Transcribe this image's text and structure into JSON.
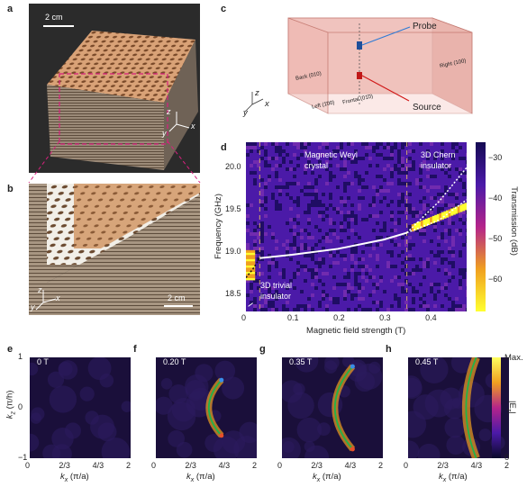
{
  "panels": {
    "a": {
      "label": "a",
      "scale": "2 cm",
      "axes": {
        "x": "x",
        "y": "y",
        "z": "z"
      }
    },
    "b": {
      "label": "b",
      "scale": "2 cm",
      "axes": {
        "x": "x",
        "y": "y",
        "z": "z"
      }
    },
    "c": {
      "label": "c",
      "probe": "Probe",
      "source": "Source",
      "faces": {
        "back": "Back (010)",
        "right": "Right (100)",
        "left": "Left (1̄00)",
        "frontal": "Frontal (01̄0)"
      },
      "axes": {
        "x": "x",
        "y": "y",
        "z": "z"
      }
    },
    "d": {
      "label": "d",
      "regions": {
        "weyl_line1": "Magnetic Weyl",
        "weyl_line2": "crystal",
        "chern_line1": "3D Chern",
        "chern_line2": "insulator",
        "trivial_line1": "3D trivial",
        "trivial_line2": "insulator"
      },
      "colorbar_label": "Transmission (dB)",
      "colorbar_ticks": [
        "−30",
        "−40",
        "−50",
        "−60"
      ],
      "colorbar_colors": [
        "#140a52",
        "#4b1aa8",
        "#b4248a",
        "#f0a020",
        "#ffff30"
      ]
    },
    "efgh": {
      "e_label": "e",
      "f_label": "f",
      "g_label": "g",
      "h_label": "h",
      "e_field": "0 T",
      "f_field": "0.20 T",
      "g_field": "0.35 T",
      "h_field": "0.45 T",
      "colorbar_label": "|E",
      "colorbar_sub": "z",
      "colorbar_max": "Max.",
      "colorbar_min": "0",
      "ylabel": "k",
      "ylabel_sub": "z",
      "ylabel_units": "(π/h)",
      "xlabel": "k",
      "xlabel_sub": "x",
      "xlabel_units": "(π/a)",
      "xticks": [
        "0",
        "2/3",
        "4/3",
        "2"
      ],
      "yticks": [
        "1",
        "0",
        "−1"
      ]
    }
  },
  "chart_data": {
    "type": "heatmap",
    "xlabel": "Magnetic field strength (T)",
    "ylabel": "Frequency (GHz)",
    "xticks": [
      "0",
      "0.1",
      "0.2",
      "0.3",
      "0.4"
    ],
    "yticks": [
      "20.0",
      "19.5",
      "19.0",
      "18.5"
    ],
    "xlim": [
      0,
      0.48
    ],
    "ylim": [
      18.3,
      20.3
    ],
    "phase_boundaries_T": [
      0.03,
      0.35
    ],
    "weyl_curve": {
      "x": [
        0.03,
        0.1,
        0.2,
        0.3,
        0.35
      ],
      "y": [
        18.93,
        18.97,
        19.04,
        19.15,
        19.23
      ]
    }
  }
}
